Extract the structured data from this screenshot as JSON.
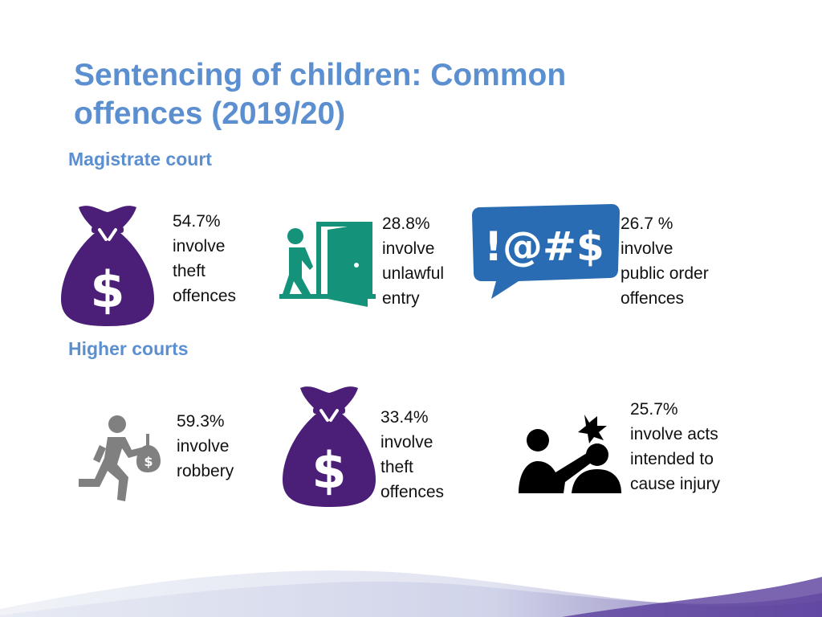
{
  "slide": {
    "title_line1": "Sentencing of children: Common",
    "title_line2": "offences (2019/20)"
  },
  "sections": {
    "magistrate": {
      "label": "Magistrate court",
      "stats": [
        {
          "percent": "54.7%",
          "lines": [
            "involve",
            "theft",
            "offences"
          ],
          "icon": "money-bag-icon"
        },
        {
          "percent": "28.8%",
          "lines": [
            "involve",
            "unlawful",
            "entry"
          ],
          "icon": "unlawful-entry-icon"
        },
        {
          "percent": "26.7 %",
          "lines": [
            "involve",
            "public order",
            "offences"
          ],
          "icon": "profanity-speech-bubble-icon"
        }
      ]
    },
    "higher": {
      "label": "Higher courts",
      "stats": [
        {
          "percent": "59.3%",
          "lines": [
            "involve",
            "robbery"
          ],
          "icon": "robber-running-icon"
        },
        {
          "percent": "33.4%",
          "lines": [
            "involve",
            "theft",
            "offences"
          ],
          "icon": "money-bag-icon"
        },
        {
          "percent": "25.7%",
          "lines": [
            "involve acts",
            "intended to",
            "cause injury"
          ],
          "icon": "assault-icon"
        }
      ]
    }
  },
  "bubble_text": "!@#$",
  "colors": {
    "heading": "#5b8fd0",
    "bag": "#4b1e78",
    "door": "#14937a",
    "bubble": "#2a6cb3",
    "robber": "#808080",
    "assault": "#000000"
  }
}
